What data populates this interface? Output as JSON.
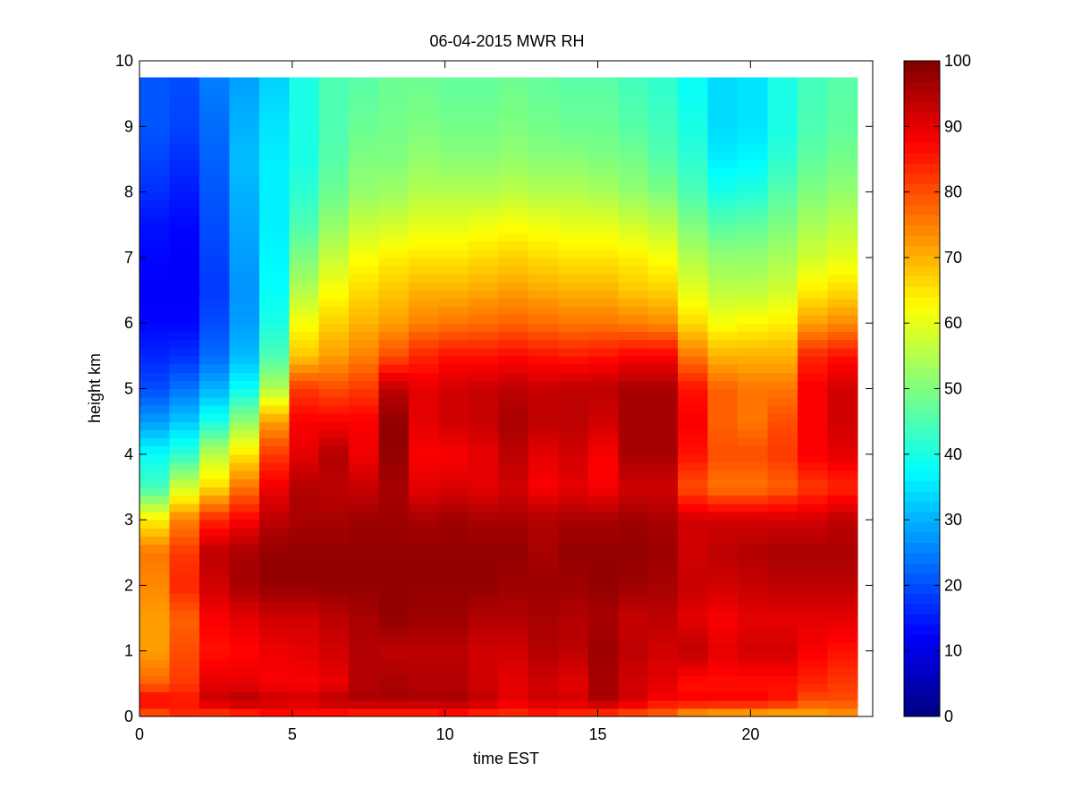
{
  "chart_data": {
    "type": "heatmap",
    "title": "06-04-2015 MWR RH",
    "xlabel": "time EST",
    "ylabel": "height km",
    "xlim": [
      0,
      24
    ],
    "ylim": [
      0,
      10
    ],
    "xticks": [
      0,
      5,
      10,
      15,
      20
    ],
    "yticks": [
      0,
      1,
      2,
      3,
      4,
      5,
      6,
      7,
      8,
      9,
      10
    ],
    "colormap": "jet",
    "clim": [
      0,
      100
    ],
    "colorbar_ticks": [
      0,
      10,
      20,
      30,
      40,
      50,
      60,
      70,
      80,
      90,
      100
    ],
    "colorbar_position": "right",
    "data_extent": {
      "x": [
        0,
        23.5
      ],
      "y": [
        0,
        9.75
      ]
    },
    "x": [
      0.5,
      1.5,
      2.5,
      3.5,
      4.5,
      5.5,
      6.5,
      7.5,
      8.5,
      9.5,
      10.5,
      11.5,
      12.5,
      13.5,
      14.5,
      15.5,
      16.5,
      17.5,
      18.5,
      19.5,
      20.5,
      21.5,
      22.5,
      23.5
    ],
    "height_profile": {
      "heights": [
        0,
        0.25,
        0.5,
        1.0,
        1.5,
        2.0,
        2.5,
        3.0,
        3.5,
        4.0,
        4.5,
        5.0,
        5.5,
        6.0,
        6.5,
        7.0,
        7.5,
        8.0,
        8.5,
        9.0,
        9.75
      ],
      "rh": [
        [
          78,
          88,
          78,
          72,
          72,
          74,
          76,
          64,
          44,
          38,
          28,
          20,
          16,
          13,
          12,
          13,
          14,
          17,
          19,
          21,
          21
        ],
        [
          83,
          86,
          82,
          80,
          78,
          84,
          82,
          75,
          58,
          42,
          32,
          24,
          17,
          13,
          12,
          12,
          13,
          15,
          17,
          19,
          20
        ],
        [
          80,
          93,
          90,
          86,
          88,
          92,
          94,
          84,
          66,
          56,
          40,
          30,
          23,
          20,
          18,
          19,
          20,
          21,
          22,
          23,
          25
        ],
        [
          82,
          95,
          90,
          87,
          90,
          96,
          96,
          88,
          76,
          65,
          52,
          38,
          31,
          28,
          27,
          28,
          29,
          30,
          31,
          30,
          28
        ],
        [
          85,
          93,
          88,
          89,
          92,
          98,
          98,
          94,
          89,
          82,
          72,
          55,
          45,
          40,
          38,
          37,
          36,
          36,
          36,
          35,
          33
        ],
        [
          85,
          92,
          88,
          90,
          92,
          98,
          98,
          96,
          95,
          90,
          88,
          82,
          68,
          62,
          55,
          50,
          45,
          42,
          40,
          40,
          40
        ],
        [
          84,
          95,
          89,
          92,
          94,
          98,
          98,
          96,
          94,
          95,
          88,
          80,
          72,
          67,
          62,
          57,
          52,
          48,
          46,
          45,
          45
        ],
        [
          82,
          96,
          95,
          95,
          96,
          98,
          98,
          97,
          93,
          89,
          88,
          82,
          75,
          70,
          66,
          62,
          57,
          52,
          50,
          48,
          46
        ],
        [
          82,
          96,
          96,
          94,
          98,
          98,
          98,
          97,
          96,
          98,
          98,
          94,
          80,
          72,
          68,
          64,
          58,
          53,
          50,
          49,
          48
        ],
        [
          82,
          96,
          95,
          94,
          97,
          98,
          98,
          96,
          90,
          88,
          90,
          90,
          84,
          75,
          70,
          65,
          60,
          55,
          52,
          50,
          48
        ],
        [
          84,
          96,
          95,
          94,
          97,
          98,
          98,
          97,
          91,
          88,
          92,
          92,
          86,
          76,
          70,
          65,
          60,
          55,
          51,
          49,
          47
        ],
        [
          82,
          94,
          92,
          92,
          95,
          98,
          98,
          96,
          90,
          90,
          93,
          93,
          86,
          77,
          71,
          66,
          61,
          55,
          51,
          49,
          47
        ],
        [
          82,
          90,
          90,
          92,
          95,
          97,
          98,
          96,
          92,
          94,
          96,
          94,
          87,
          78,
          72,
          67,
          62,
          56,
          52,
          50,
          48
        ],
        [
          84,
          92,
          92,
          95,
          96,
          97,
          96,
          95,
          88,
          90,
          94,
          93,
          86,
          77,
          71,
          66,
          61,
          55,
          51,
          49,
          47
        ],
        [
          82,
          92,
          90,
          94,
          95,
          97,
          98,
          96,
          90,
          92,
          94,
          94,
          85,
          76,
          70,
          65,
          60,
          55,
          51,
          48,
          46
        ],
        [
          80,
          96,
          96,
          97,
          96,
          98,
          98,
          96,
          88,
          88,
          92,
          94,
          86,
          76,
          70,
          65,
          60,
          54,
          50,
          48,
          46
        ],
        [
          78,
          92,
          92,
          94,
          93,
          97,
          98,
          97,
          92,
          96,
          96,
          96,
          88,
          75,
          68,
          64,
          58,
          52,
          49,
          46,
          44
        ],
        [
          76,
          88,
          90,
          92,
          94,
          96,
          97,
          96,
          92,
          96,
          96,
          96,
          88,
          74,
          67,
          62,
          56,
          50,
          46,
          44,
          42
        ],
        [
          70,
          88,
          86,
          94,
          90,
          93,
          92,
          92,
          80,
          86,
          88,
          86,
          76,
          66,
          60,
          55,
          50,
          45,
          42,
          40,
          38
        ],
        [
          68,
          88,
          86,
          90,
          88,
          92,
          94,
          92,
          76,
          80,
          78,
          78,
          70,
          62,
          56,
          52,
          46,
          40,
          36,
          34,
          34
        ],
        [
          68,
          88,
          86,
          92,
          90,
          93,
          95,
          92,
          76,
          80,
          76,
          76,
          70,
          63,
          56,
          52,
          47,
          41,
          37,
          35,
          35
        ],
        [
          68,
          86,
          86,
          92,
          90,
          94,
          96,
          92,
          78,
          82,
          80,
          76,
          70,
          64,
          58,
          54,
          50,
          46,
          42,
          40,
          40
        ],
        [
          70,
          80,
          84,
          88,
          90,
          94,
          96,
          92,
          82,
          88,
          88,
          88,
          84,
          72,
          64,
          58,
          54,
          50,
          47,
          45,
          44
        ],
        [
          72,
          80,
          82,
          86,
          90,
          94,
          96,
          94,
          84,
          90,
          92,
          92,
          86,
          74,
          66,
          60,
          56,
          52,
          49,
          47,
          46
        ]
      ]
    }
  }
}
